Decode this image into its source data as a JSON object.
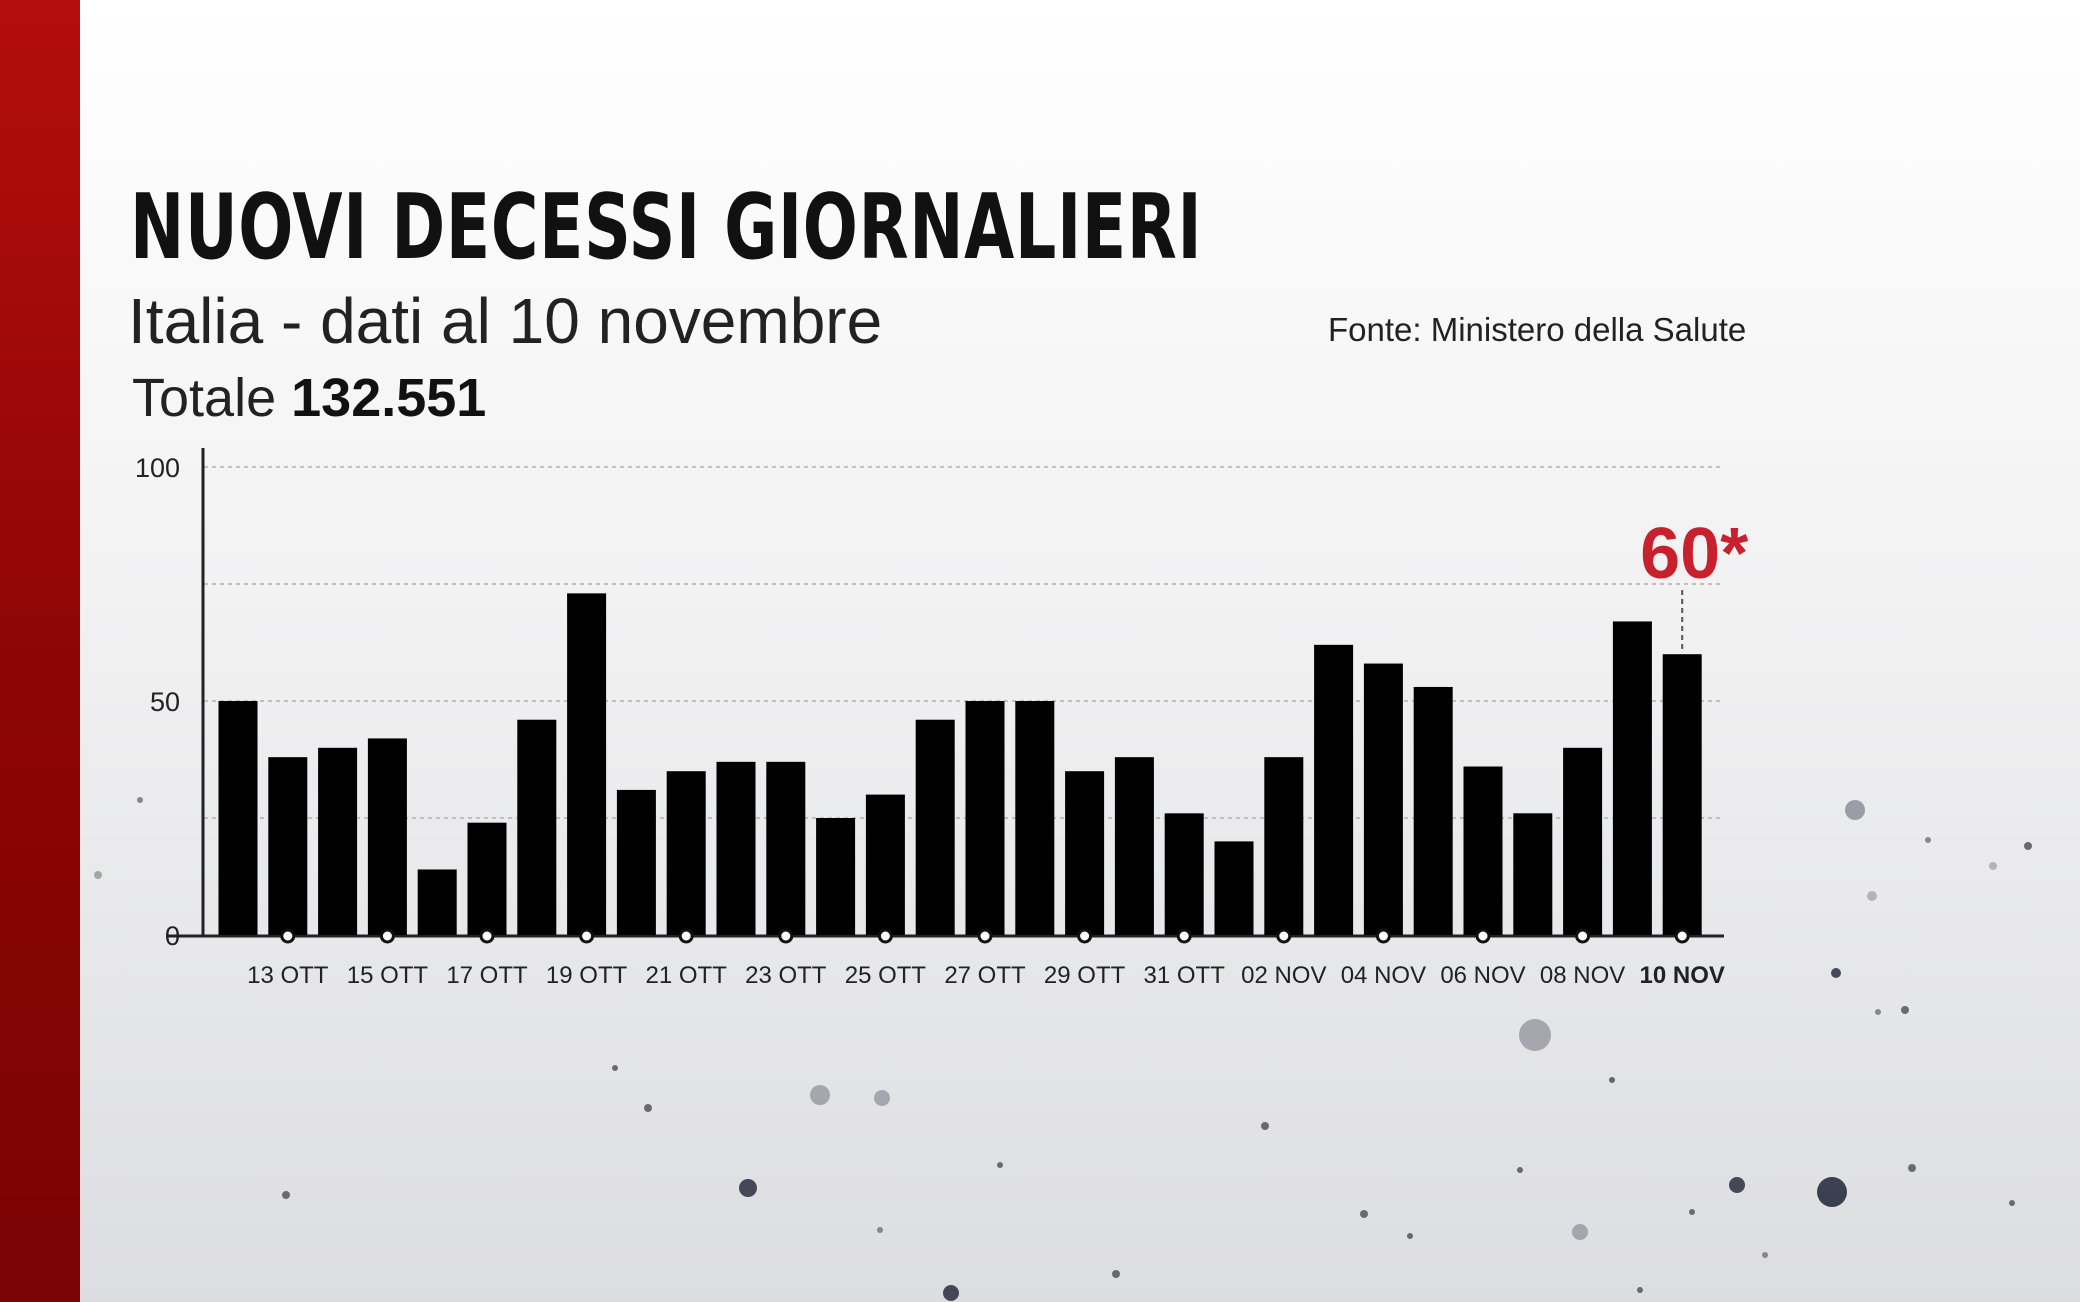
{
  "title": "NUOVI DECESSI GIORNALIERI",
  "subtitle": "Italia - dati al 10 novembre",
  "total_label": "Totale",
  "total_value": "132.551",
  "source": "Fonte: Ministero della Salute",
  "colors": {
    "bar": "#000000",
    "accent": "#c8202c",
    "band": "#a50909"
  },
  "chart_data": {
    "type": "bar",
    "categories": [
      "12 OTT",
      "13 OTT",
      "14 OTT",
      "15 OTT",
      "16 OTT",
      "17 OTT",
      "18 OTT",
      "19 OTT",
      "20 OTT",
      "21 OTT",
      "22 OTT",
      "23 OTT",
      "24 OTT",
      "25 OTT",
      "26 OTT",
      "27 OTT",
      "28 OTT",
      "29 OTT",
      "30 OTT",
      "31 OTT",
      "01 NOV",
      "02 NOV",
      "03 NOV",
      "04 NOV",
      "05 NOV",
      "06 NOV",
      "07 NOV",
      "08 NOV",
      "09 NOV",
      "10 NOV"
    ],
    "values": [
      50,
      38,
      40,
      42,
      14,
      24,
      46,
      73,
      31,
      35,
      37,
      37,
      25,
      30,
      46,
      50,
      50,
      35,
      38,
      26,
      20,
      38,
      62,
      58,
      53,
      36,
      26,
      40,
      67,
      60
    ],
    "tick_labels": [
      "13 OTT",
      "15 OTT",
      "17 OTT",
      "19 OTT",
      "21 OTT",
      "23 OTT",
      "25 OTT",
      "27 OTT",
      "29 OTT",
      "31 OTT",
      "02 NOV",
      "04 NOV",
      "06 NOV",
      "08 NOV",
      "10 NOV"
    ],
    "y_ticks": [
      0,
      50,
      100
    ],
    "ylim": [
      0,
      100
    ],
    "grid": true,
    "highlight": {
      "category": "10 NOV",
      "label": "60*"
    }
  }
}
